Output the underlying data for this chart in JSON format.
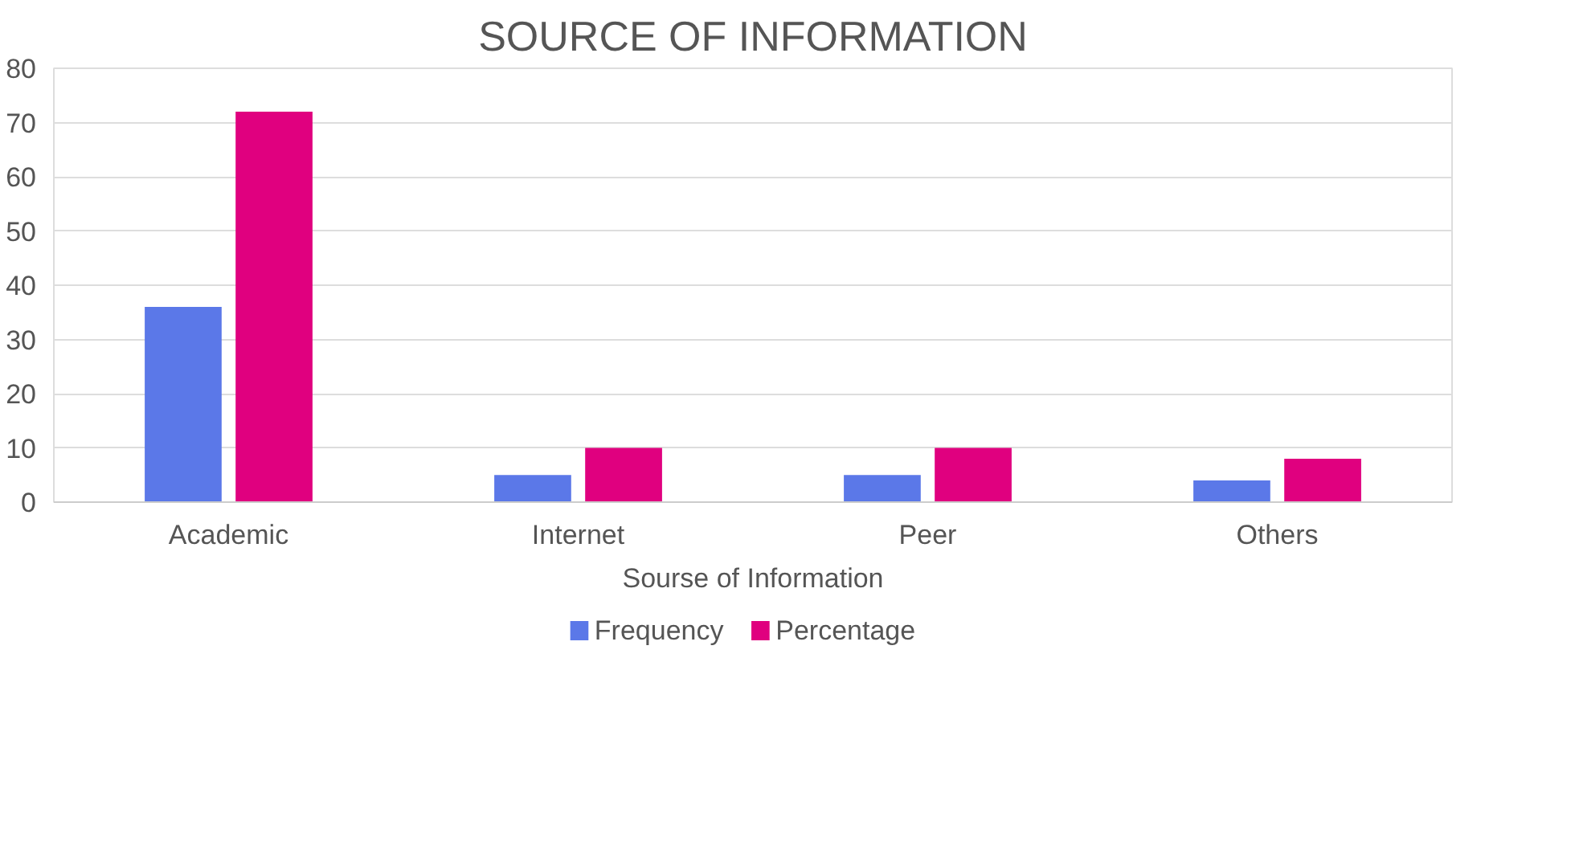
{
  "chart_data": {
    "type": "bar",
    "title": "SOURCE OF INFORMATION",
    "xlabel": "Sourse of Information",
    "categories": [
      "Academic",
      "Internet",
      "Peer",
      "Others"
    ],
    "series": [
      {
        "name": "Frequency",
        "color": "#5b78e8",
        "values": [
          36,
          5,
          5,
          4
        ]
      },
      {
        "name": "Percentage",
        "color": "#e0007f",
        "values": [
          72,
          10,
          10,
          8
        ]
      }
    ],
    "ylim": [
      0,
      80
    ],
    "yticks": [
      0,
      10,
      20,
      30,
      40,
      50,
      60,
      70,
      80
    ],
    "grid": "y",
    "legend": "bottom"
  }
}
